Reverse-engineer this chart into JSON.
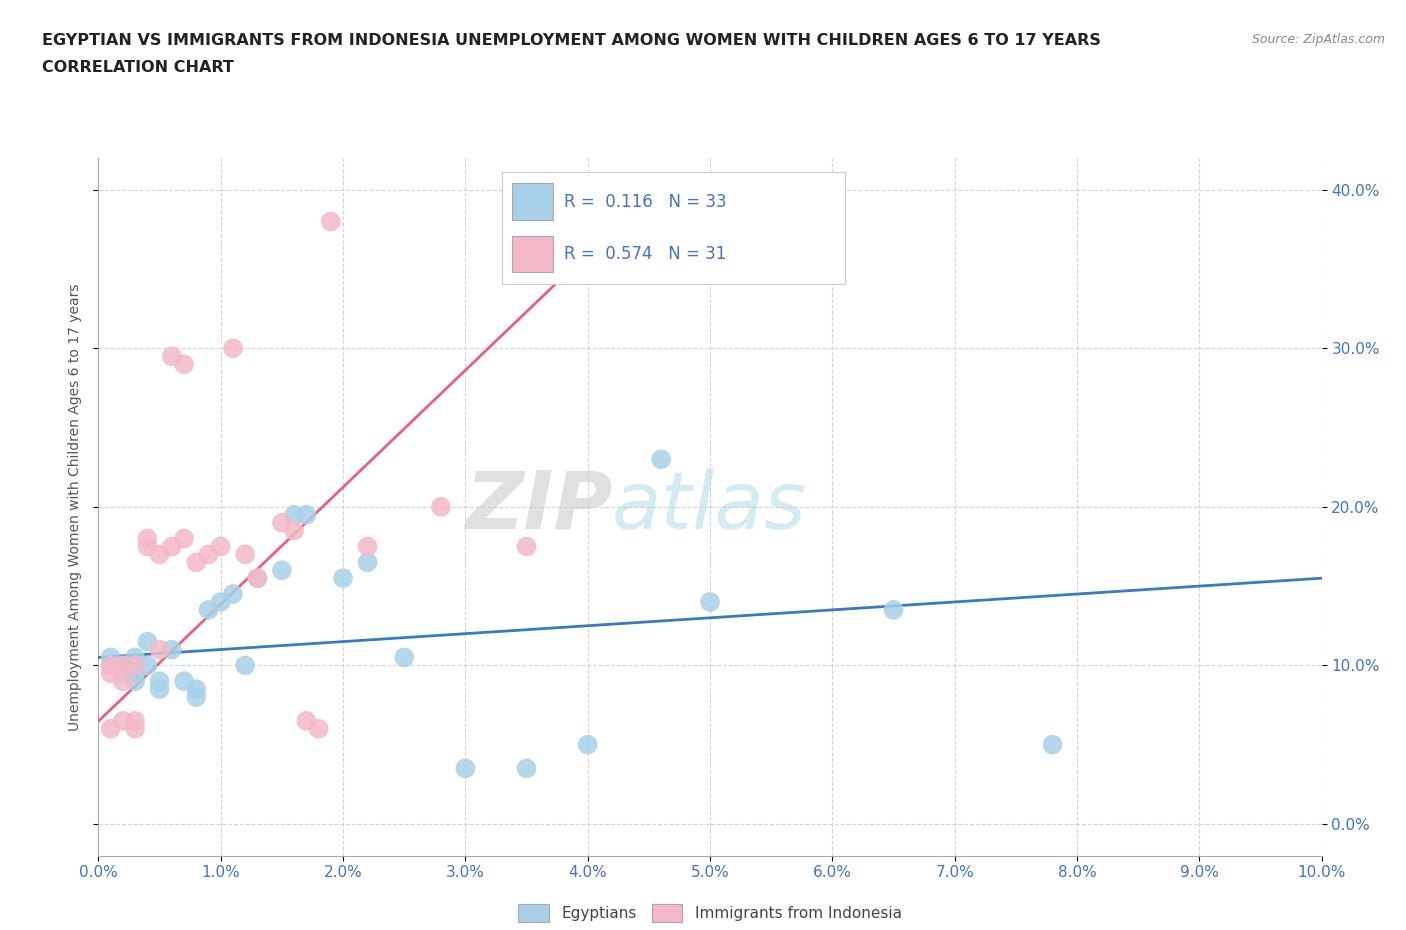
{
  "title_line1": "EGYPTIAN VS IMMIGRANTS FROM INDONESIA UNEMPLOYMENT AMONG WOMEN WITH CHILDREN AGES 6 TO 17 YEARS",
  "title_line2": "CORRELATION CHART",
  "source": "Source: ZipAtlas.com",
  "xlim": [
    0.0,
    0.1
  ],
  "ylim": [
    -0.02,
    0.42
  ],
  "legend_blue_R": "0.116",
  "legend_blue_N": "33",
  "legend_pink_R": "0.574",
  "legend_pink_N": "31",
  "watermark_ZIP": "ZIP",
  "watermark_atlas": "atlas",
  "blue_scatter_x": [
    0.001,
    0.001,
    0.002,
    0.002,
    0.003,
    0.003,
    0.003,
    0.004,
    0.004,
    0.005,
    0.005,
    0.006,
    0.007,
    0.008,
    0.008,
    0.009,
    0.01,
    0.011,
    0.012,
    0.013,
    0.015,
    0.016,
    0.017,
    0.02,
    0.022,
    0.025,
    0.03,
    0.035,
    0.04,
    0.046,
    0.05,
    0.065,
    0.078
  ],
  "blue_scatter_y": [
    0.1,
    0.105,
    0.095,
    0.1,
    0.09,
    0.095,
    0.105,
    0.1,
    0.115,
    0.085,
    0.09,
    0.11,
    0.09,
    0.08,
    0.085,
    0.135,
    0.14,
    0.145,
    0.1,
    0.155,
    0.16,
    0.195,
    0.195,
    0.155,
    0.165,
    0.105,
    0.035,
    0.035,
    0.05,
    0.23,
    0.14,
    0.135,
    0.05
  ],
  "pink_scatter_x": [
    0.001,
    0.001,
    0.001,
    0.002,
    0.002,
    0.002,
    0.003,
    0.003,
    0.003,
    0.004,
    0.004,
    0.005,
    0.005,
    0.006,
    0.006,
    0.007,
    0.007,
    0.008,
    0.009,
    0.01,
    0.011,
    0.012,
    0.013,
    0.015,
    0.016,
    0.017,
    0.018,
    0.019,
    0.022,
    0.028,
    0.035
  ],
  "pink_scatter_y": [
    0.095,
    0.1,
    0.06,
    0.09,
    0.1,
    0.065,
    0.06,
    0.1,
    0.065,
    0.175,
    0.18,
    0.17,
    0.11,
    0.175,
    0.295,
    0.18,
    0.29,
    0.165,
    0.17,
    0.175,
    0.3,
    0.17,
    0.155,
    0.19,
    0.185,
    0.065,
    0.06,
    0.38,
    0.175,
    0.2,
    0.175
  ],
  "blue_line_x": [
    0.0,
    0.1
  ],
  "blue_line_y": [
    0.105,
    0.155
  ],
  "pink_line_x": [
    -0.002,
    0.04
  ],
  "pink_line_y": [
    0.05,
    0.36
  ],
  "blue_color": "#a8d0e8",
  "pink_color": "#f4b8c8",
  "blue_line_color": "#3a7abf",
  "pink_line_color": "#e8607a",
  "grid_color": "#d0d0d0",
  "title_color": "#222222",
  "axis_tick_color": "#4472c4",
  "ylabel_color": "#555555",
  "background_color": "#ffffff",
  "legend_border_color": "#cccccc"
}
